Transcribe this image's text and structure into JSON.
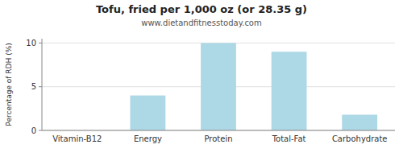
{
  "chart_data": {
    "type": "bar",
    "title": "Tofu, fried per 1,000 oz (or 28.35 g)",
    "subtitle": "www.dietandfitnesstoday.com",
    "ylabel": "Percentage of RDH (%)",
    "categories": [
      "Vitamin-B12",
      "Energy",
      "Protein",
      "Total-Fat",
      "Carbohydrate"
    ],
    "values": [
      0,
      4.0,
      10.0,
      9.0,
      1.8
    ],
    "color": "#add8e6",
    "ylim": [
      0,
      10.5
    ],
    "yticks": [
      0,
      5,
      10
    ],
    "grid": true
  }
}
